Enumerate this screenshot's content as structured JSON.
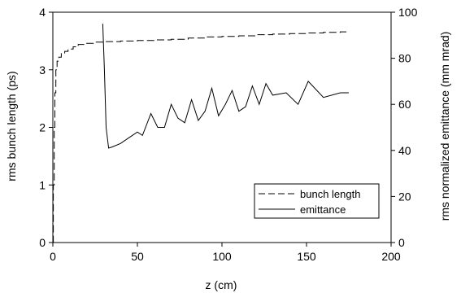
{
  "chart_data": {
    "type": "line",
    "title": "",
    "xlabel": "z (cm)",
    "ylabel_left": "rms bunch length (ps)",
    "ylabel_right": "rms normalized emittance (mm mrad)",
    "xlim": [
      0,
      200
    ],
    "ylim_left": [
      0,
      4
    ],
    "ylim_right": [
      0,
      100
    ],
    "x_ticks": [
      "0",
      "50",
      "100",
      "150",
      "200"
    ],
    "y_left_ticks": [
      "0",
      "1",
      "2",
      "3",
      "4"
    ],
    "y_right_ticks": [
      "0",
      "20",
      "40",
      "60",
      "80",
      "100"
    ],
    "grid": false,
    "legend_position": "bottom-right",
    "series": [
      {
        "name": "bunch length",
        "axis": "left",
        "style": "dashed",
        "color": "#000000",
        "x": [
          0,
          0.3,
          0.8,
          1.2,
          1.8,
          2.5,
          3.5,
          5,
          7,
          9,
          12,
          15,
          20,
          25,
          30,
          40,
          50,
          60,
          70,
          80,
          90,
          100,
          110,
          120,
          130,
          140,
          150,
          160,
          170,
          175
        ],
        "y": [
          0,
          1.0,
          2.0,
          2.6,
          3.0,
          3.15,
          3.22,
          3.28,
          3.32,
          3.36,
          3.4,
          3.44,
          3.46,
          3.48,
          3.49,
          3.5,
          3.51,
          3.52,
          3.53,
          3.55,
          3.57,
          3.58,
          3.59,
          3.61,
          3.62,
          3.63,
          3.64,
          3.65,
          3.66,
          3.67
        ]
      },
      {
        "name": "emittance",
        "axis": "right",
        "style": "solid",
        "color": "#000000",
        "x": [
          29.5,
          30.5,
          31.5,
          33,
          35,
          40,
          45,
          50,
          53,
          58,
          62,
          66,
          70,
          74,
          78,
          82,
          86,
          90,
          94,
          98,
          102,
          106,
          110,
          114,
          118,
          122,
          126,
          130,
          138,
          145,
          151,
          160,
          170,
          175
        ],
        "y": [
          95,
          75,
          50,
          41,
          41.5,
          43,
          45.5,
          48,
          46.5,
          56,
          50,
          50,
          60,
          54,
          52,
          62,
          53,
          57,
          67,
          55,
          60,
          66,
          57,
          59,
          68,
          60,
          69,
          64,
          65,
          60,
          70,
          63,
          65,
          65
        ]
      }
    ]
  }
}
